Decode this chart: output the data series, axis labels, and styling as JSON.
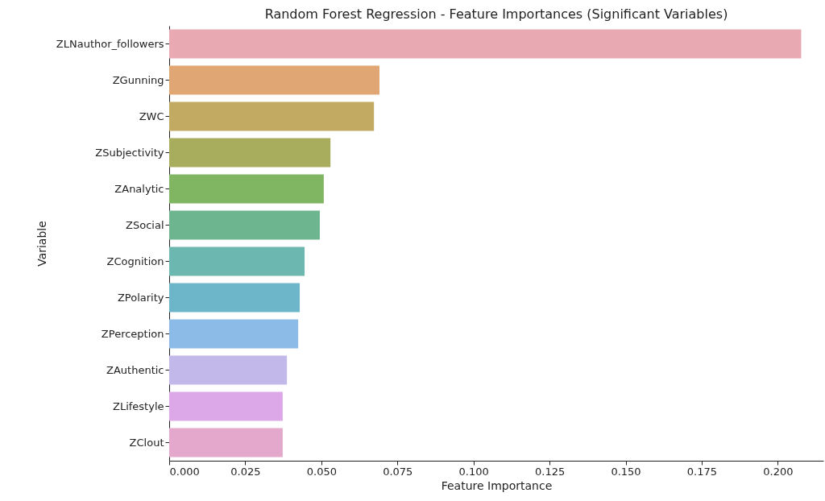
{
  "chart_data": {
    "type": "bar",
    "orientation": "horizontal",
    "title": "Random Forest Regression - Feature Importances (Significant Variables)",
    "xlabel": "Feature Importance",
    "ylabel": "Variable",
    "categories": [
      "ZLNauthor_followers",
      "ZGunning",
      "ZWC",
      "ZSubjectivity",
      "ZAnalytic",
      "ZSocial",
      "ZCognition",
      "ZPolarity",
      "ZPerception",
      "ZAuthentic",
      "ZLifestyle",
      "ZClout"
    ],
    "values": [
      0.2077,
      0.0691,
      0.0673,
      0.053,
      0.0508,
      0.0495,
      0.0445,
      0.0429,
      0.0424,
      0.0387,
      0.0373,
      0.0373
    ],
    "colors": [
      "#e8a9b3",
      "#e0a673",
      "#c2aa62",
      "#a8ad5e",
      "#80b562",
      "#6db58f",
      "#6cb8b1",
      "#6db5c8",
      "#8bbbe6",
      "#c2b8ea",
      "#dca8e8",
      "#e4a8cc"
    ],
    "xlim": [
      0,
      0.215
    ],
    "xticks": [
      {
        "value": 0,
        "label": "0.000"
      },
      {
        "value": 0.025,
        "label": "0.025"
      },
      {
        "value": 0.05,
        "label": "0.050"
      },
      {
        "value": 0.075,
        "label": "0.075"
      },
      {
        "value": 0.1,
        "label": "0.100"
      },
      {
        "value": 0.125,
        "label": "0.125"
      },
      {
        "value": 0.15,
        "label": "0.150"
      },
      {
        "value": 0.175,
        "label": "0.175"
      },
      {
        "value": 0.2,
        "label": "0.200"
      }
    ],
    "grid": false
  }
}
